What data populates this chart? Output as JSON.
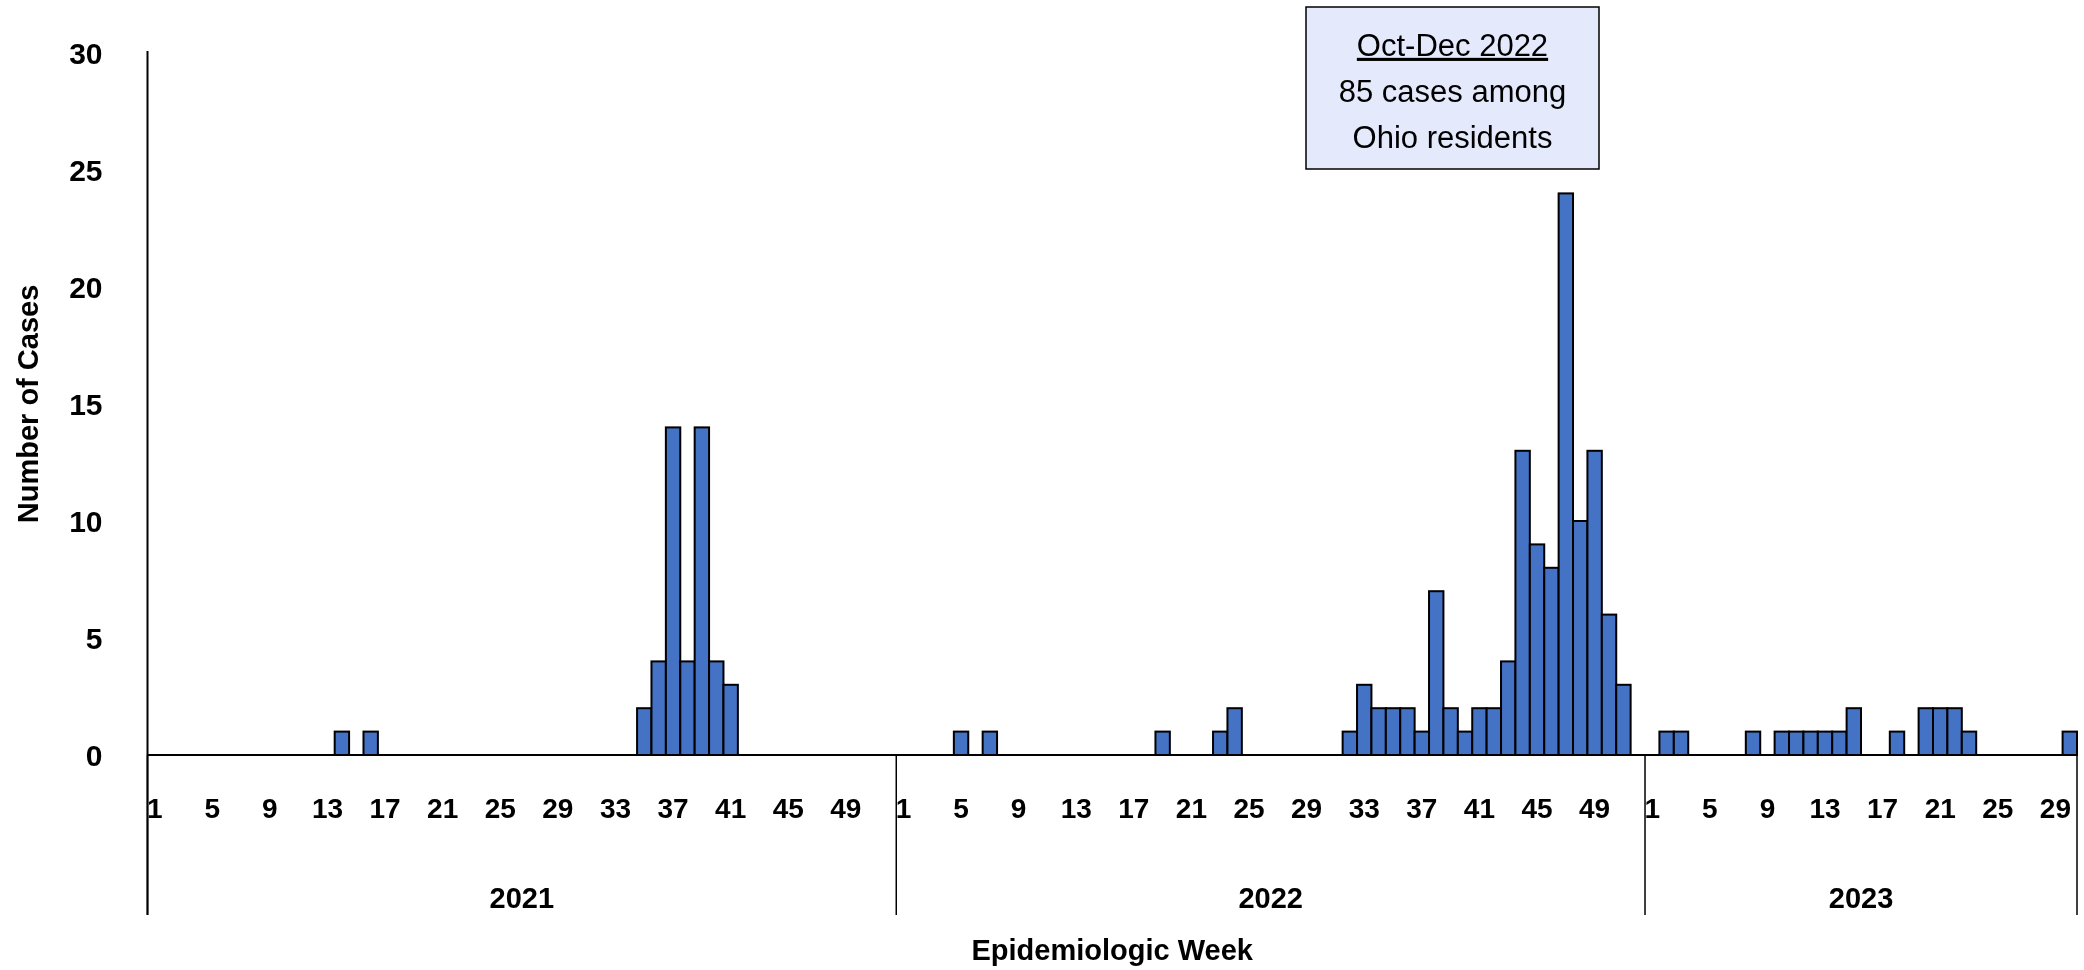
{
  "chart_data": {
    "type": "bar",
    "xlabel": "Epidemiologic Week",
    "ylabel": "Number of Cases",
    "color": "#4472c4",
    "ylim": [
      0,
      30
    ],
    "yticks": [
      0,
      5,
      10,
      15,
      20,
      25,
      30
    ],
    "categories": [
      "1",
      null,
      null,
      null,
      "5",
      null,
      null,
      null,
      "9",
      null,
      null,
      null,
      "13",
      null,
      null,
      null,
      "17",
      null,
      null,
      null,
      "21",
      null,
      null,
      null,
      "25",
      null,
      null,
      null,
      "29",
      null,
      null,
      null,
      "33",
      null,
      null,
      null,
      "37",
      null,
      null,
      null,
      "41",
      null,
      null,
      null,
      "45",
      null,
      null,
      null,
      "49",
      null,
      null,
      null,
      "1",
      null,
      null,
      null,
      "5",
      null,
      null,
      null,
      "9",
      null,
      null,
      null,
      "13",
      null,
      null,
      null,
      "17",
      null,
      null,
      null,
      "21",
      null,
      null,
      null,
      "25",
      null,
      null,
      null,
      "29",
      null,
      null,
      null,
      "33",
      null,
      null,
      null,
      "37",
      null,
      null,
      null,
      "41",
      null,
      null,
      null,
      "45",
      null,
      null,
      null,
      "49",
      null,
      null,
      null,
      "1",
      null,
      null,
      null,
      "5",
      null,
      null,
      null,
      "9",
      null,
      null,
      null,
      "13",
      null,
      null,
      null,
      "17",
      null,
      null,
      null,
      "21",
      null,
      null,
      null,
      "25",
      null,
      null,
      null,
      "29",
      null
    ],
    "values": [
      0,
      0,
      0,
      0,
      0,
      0,
      0,
      0,
      0,
      0,
      0,
      0,
      0,
      1,
      0,
      1,
      0,
      0,
      0,
      0,
      0,
      0,
      0,
      0,
      0,
      0,
      0,
      0,
      0,
      0,
      0,
      0,
      0,
      0,
      2,
      4,
      14,
      4,
      14,
      4,
      3,
      0,
      0,
      0,
      0,
      0,
      0,
      0,
      0,
      0,
      0,
      0,
      0,
      0,
      0,
      0,
      1,
      0,
      1,
      0,
      0,
      0,
      0,
      0,
      0,
      0,
      0,
      0,
      0,
      0,
      1,
      0,
      0,
      0,
      1,
      2,
      0,
      0,
      0,
      0,
      0,
      0,
      0,
      1,
      3,
      2,
      2,
      2,
      1,
      7,
      2,
      1,
      2,
      2,
      4,
      13,
      9,
      8,
      24,
      10,
      13,
      6,
      3,
      0,
      0,
      1,
      1,
      0,
      0,
      0,
      0,
      1,
      0,
      1,
      1,
      1,
      1,
      1,
      2,
      0,
      0,
      1,
      0,
      2,
      2,
      2,
      1,
      0,
      0,
      0,
      0,
      0,
      0,
      1
    ],
    "annotations": [
      "2021",
      "2022",
      "2023",
      "Oct-Dec 2022\n85 cases among\nOhio residents"
    ]
  }
}
